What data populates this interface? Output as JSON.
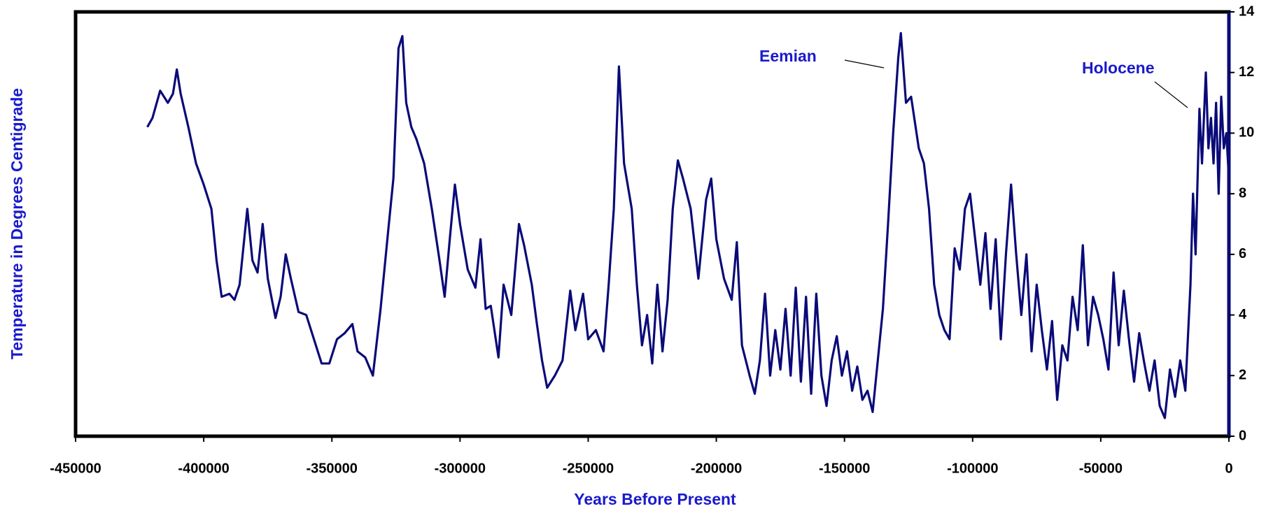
{
  "chart_data": {
    "type": "line",
    "x_label": "Years Before Present",
    "y_label": "Temperature in Degrees Centigrade",
    "annotations": [
      "Eemian",
      "Holocene"
    ],
    "xlim": [
      -450000,
      0
    ],
    "xticks": [
      -450000,
      -400000,
      -350000,
      -300000,
      -250000,
      -200000,
      -150000,
      -100000,
      -50000,
      0
    ],
    "ylim": [
      0,
      14
    ],
    "yticks": [
      0,
      2,
      4,
      6,
      8,
      10,
      12,
      14
    ],
    "y_axis_side": "right",
    "grid": false,
    "series": [
      {
        "color": "#0a0a78",
        "x": [
          -422000,
          -420000,
          -417000,
          -414000,
          -412000,
          -410500,
          -409000,
          -406000,
          -403000,
          -400000,
          -397000,
          -395000,
          -393000,
          -390000,
          -388000,
          -386000,
          -383000,
          -381000,
          -379000,
          -377000,
          -375000,
          -372000,
          -370000,
          -368000,
          -366000,
          -363000,
          -360000,
          -357000,
          -354000,
          -351000,
          -348000,
          -345000,
          -342000,
          -340000,
          -337000,
          -334000,
          -331000,
          -328000,
          -326000,
          -324000,
          -322500,
          -321000,
          -319000,
          -317000,
          -314000,
          -311000,
          -308000,
          -306000,
          -304000,
          -302000,
          -300000,
          -297000,
          -294000,
          -292000,
          -290000,
          -288000,
          -285000,
          -283000,
          -280000,
          -277000,
          -275000,
          -272000,
          -270000,
          -268000,
          -266000,
          -263000,
          -260000,
          -257000,
          -255000,
          -252000,
          -250000,
          -247000,
          -244000,
          -242000,
          -240000,
          -238000,
          -236000,
          -233000,
          -231000,
          -229000,
          -227000,
          -225000,
          -223000,
          -221000,
          -219000,
          -217000,
          -215000,
          -213000,
          -210000,
          -207000,
          -204000,
          -202000,
          -200000,
          -197000,
          -194000,
          -192000,
          -190000,
          -187000,
          -185000,
          -183000,
          -181000,
          -179000,
          -177000,
          -175000,
          -173000,
          -171000,
          -169000,
          -167000,
          -165000,
          -163000,
          -161000,
          -159000,
          -157000,
          -155000,
          -153000,
          -151000,
          -149000,
          -147000,
          -145000,
          -143000,
          -141000,
          -139000,
          -137000,
          -135000,
          -133000,
          -131000,
          -129000,
          -128000,
          -126000,
          -124000,
          -121000,
          -119000,
          -117000,
          -115000,
          -113000,
          -111000,
          -109000,
          -107000,
          -105000,
          -103000,
          -101000,
          -99000,
          -97000,
          -95000,
          -93000,
          -91000,
          -89000,
          -87000,
          -85000,
          -83000,
          -81000,
          -79000,
          -77000,
          -75000,
          -73000,
          -71000,
          -69000,
          -67000,
          -65000,
          -63000,
          -61000,
          -59000,
          -57000,
          -55000,
          -53000,
          -51000,
          -49000,
          -47000,
          -45000,
          -43000,
          -41000,
          -39000,
          -37000,
          -35000,
          -33000,
          -31000,
          -29000,
          -27000,
          -25000,
          -23000,
          -21000,
          -19000,
          -17000,
          -15000,
          -14000,
          -13000,
          -11500,
          -10500,
          -9000,
          -8000,
          -7000,
          -6000,
          -5000,
          -4000,
          -3000,
          -2000,
          -1000,
          0
        ],
        "values": [
          10.2,
          10.5,
          11.4,
          11.0,
          11.3,
          12.1,
          11.3,
          10.2,
          9.0,
          8.3,
          7.5,
          5.8,
          4.6,
          4.7,
          4.5,
          5.0,
          7.5,
          5.8,
          5.4,
          7.0,
          5.2,
          3.9,
          4.6,
          6.0,
          5.2,
          4.1,
          4.0,
          3.2,
          2.4,
          2.4,
          3.2,
          3.4,
          3.7,
          2.8,
          2.6,
          2.0,
          4.2,
          6.8,
          8.5,
          12.8,
          13.2,
          11.0,
          10.2,
          9.8,
          9.0,
          7.5,
          5.8,
          4.6,
          6.5,
          8.3,
          7.0,
          5.5,
          4.9,
          6.5,
          4.2,
          4.3,
          2.6,
          5.0,
          4.0,
          7.0,
          6.3,
          5.0,
          3.7,
          2.5,
          1.6,
          2.0,
          2.5,
          4.8,
          3.5,
          4.7,
          3.2,
          3.5,
          2.8,
          5.0,
          7.5,
          12.2,
          9.0,
          7.5,
          5.0,
          3.0,
          4.0,
          2.4,
          5.0,
          2.8,
          4.5,
          7.5,
          9.1,
          8.5,
          7.5,
          5.2,
          7.8,
          8.5,
          6.5,
          5.2,
          4.5,
          6.4,
          3.0,
          2.0,
          1.4,
          2.5,
          4.7,
          2.0,
          3.5,
          2.2,
          4.2,
          2.0,
          4.9,
          1.8,
          4.6,
          1.4,
          4.7,
          2.0,
          1.0,
          2.5,
          3.3,
          2.0,
          2.8,
          1.5,
          2.3,
          1.2,
          1.5,
          0.8,
          2.5,
          4.2,
          7.0,
          10.0,
          12.5,
          13.3,
          11.0,
          11.2,
          9.5,
          9.0,
          7.5,
          5.0,
          4.0,
          3.5,
          3.2,
          6.2,
          5.5,
          7.5,
          8.0,
          6.5,
          5.0,
          6.7,
          4.2,
          6.5,
          3.2,
          6.0,
          8.3,
          6.0,
          4.0,
          6.0,
          2.8,
          5.0,
          3.5,
          2.2,
          3.8,
          1.2,
          3.0,
          2.5,
          4.6,
          3.5,
          6.3,
          3.0,
          4.6,
          4.0,
          3.2,
          2.2,
          5.4,
          3.0,
          4.8,
          3.2,
          1.8,
          3.4,
          2.4,
          1.5,
          2.5,
          1.0,
          0.6,
          2.2,
          1.3,
          2.5,
          1.5,
          5.0,
          8.0,
          6.0,
          10.8,
          9.0,
          12.0,
          9.5,
          10.5,
          9.0,
          11.0,
          8.0,
          11.2,
          9.5,
          10.0,
          8.5
        ]
      }
    ]
  }
}
